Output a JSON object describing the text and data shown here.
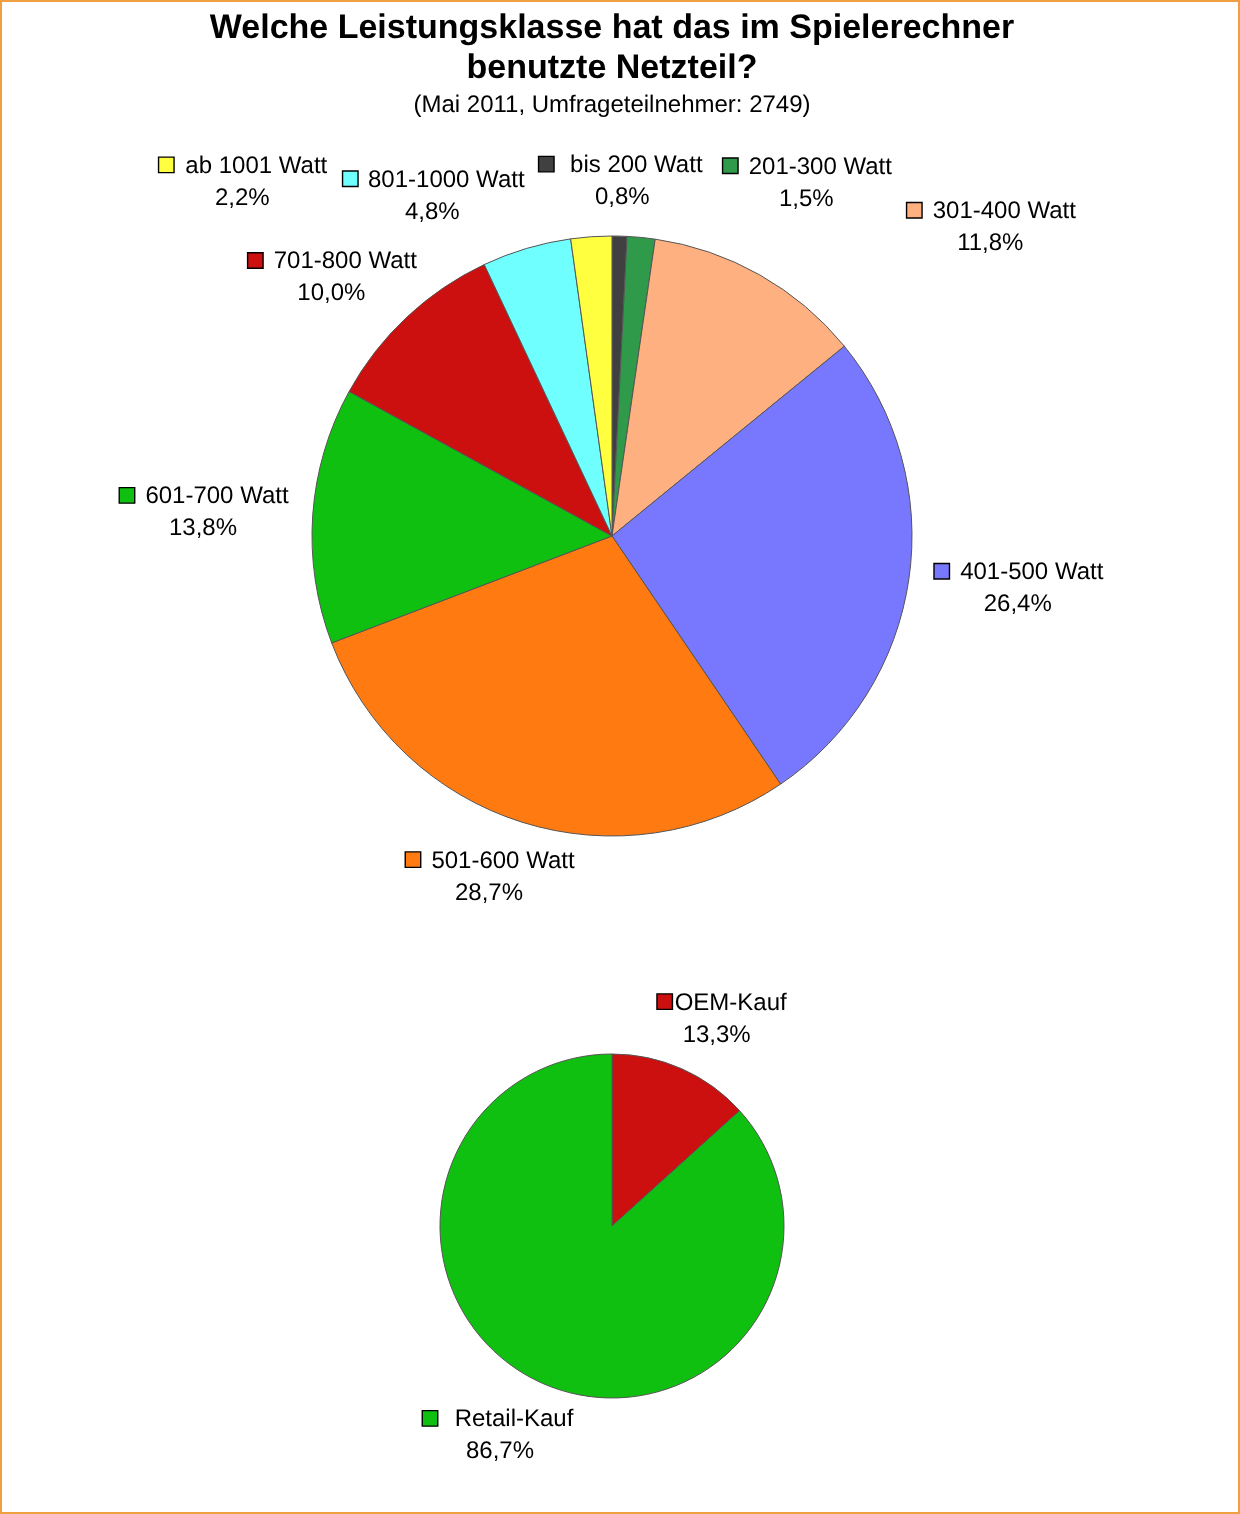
{
  "chart_data": [
    {
      "type": "pie",
      "title": "Welche Leistungsklasse hat das im Spielerechner benutzte Netzteil?",
      "subtitle": "(Mai 2011, Umfrageteilnehmer: 2749)",
      "categories": [
        "bis 200 Watt",
        "201-300 Watt",
        "301-400 Watt",
        "401-500 Watt",
        "501-600 Watt",
        "601-700 Watt",
        "701-800 Watt",
        "801-1000 Watt",
        "ab 1001 Watt"
      ],
      "values": [
        0.8,
        1.5,
        11.8,
        26.4,
        28.7,
        13.8,
        10.0,
        4.8,
        2.2
      ],
      "colors": [
        "#404040",
        "#2e9a4a",
        "#ffb080",
        "#7878ff",
        "#ff7a10",
        "#10c010",
        "#cc1010",
        "#70ffff",
        "#ffff40"
      ],
      "value_labels": [
        "0,8%",
        "1,5%",
        "11,8%",
        "26,4%",
        "28,7%",
        "13,8%",
        "10,0%",
        "4,8%",
        "2,2%"
      ],
      "legend": "top"
    },
    {
      "type": "pie",
      "categories": [
        "OEM-Kauf",
        "Retail-Kauf"
      ],
      "values": [
        13.3,
        86.7
      ],
      "colors": [
        "#cc1010",
        "#10c010"
      ],
      "value_labels": [
        "13,3%",
        "86,7%"
      ],
      "legend": "top right"
    }
  ]
}
